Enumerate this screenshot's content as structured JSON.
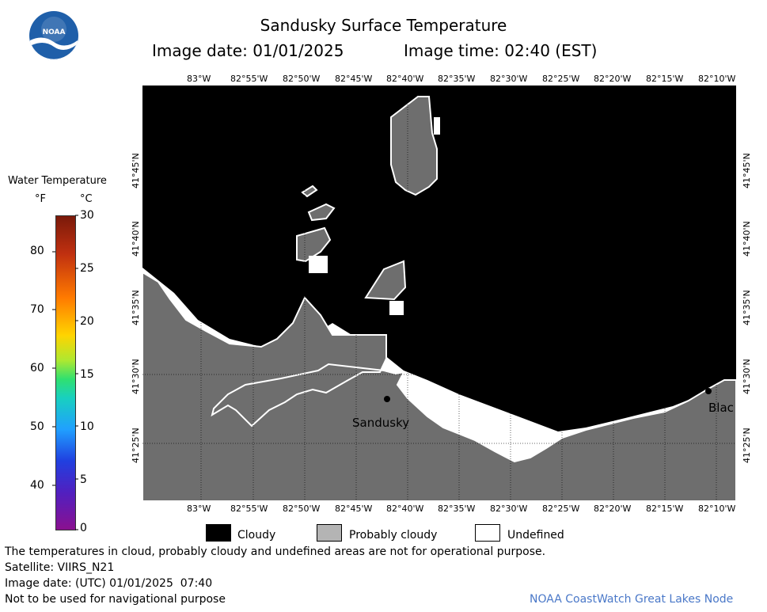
{
  "header": {
    "title": "Sandusky Surface Temperature",
    "image_date": "Image date: 01/01/2025",
    "image_time": "Image time: 02:40 (EST)"
  },
  "logo": {
    "text": "NOAA"
  },
  "colorbar": {
    "title": "Water Temperature",
    "unit_f": "°F",
    "unit_c": "°C",
    "f_ticks": [
      "80",
      "70",
      "60",
      "50",
      "40"
    ],
    "c_ticks": [
      "30",
      "25",
      "20",
      "15",
      "10",
      "5",
      "0"
    ]
  },
  "map": {
    "lon_labels": [
      "83°W",
      "82°55'W",
      "82°50'W",
      "82°45'W",
      "82°40'W",
      "82°35'W",
      "82°30'W",
      "82°25'W",
      "82°20'W",
      "82°15'W",
      "82°10'W"
    ],
    "lat_labels": [
      "41°45'N",
      "41°40'N",
      "41°35'N",
      "41°30'N",
      "41°25'N"
    ],
    "places": {
      "sandusky": "Sandusky",
      "blac": "Blac"
    },
    "colors": {
      "cloudy": "#000000",
      "probably_cloudy": "#6e6e6e",
      "undefined": "#ffffff"
    }
  },
  "legend": {
    "cloudy": "Cloudy",
    "probably_cloudy": "Probably cloudy",
    "undefined": "Undefined"
  },
  "footer": {
    "note": "The temperatures in cloud, probably cloudy and undefined areas are not for operational purpose.",
    "satellite": "Satellite: VIIRS_N21",
    "utc_date": "Image date: (UTC) 01/01/2025  07:40",
    "nav": "Not to be used for navigational purpose",
    "credit": "NOAA CoastWatch Great Lakes Node"
  }
}
